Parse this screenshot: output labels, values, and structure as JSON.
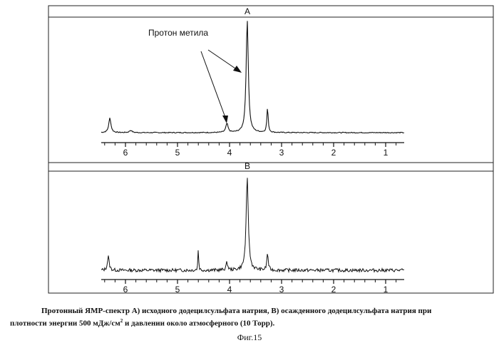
{
  "chart_data": [
    {
      "type": "line",
      "panel_label": "A",
      "annotation": "Протон метила",
      "x_ticks": [
        6,
        5,
        4,
        3,
        2,
        1
      ],
      "xlim": [
        6.45,
        0.6
      ],
      "baseline": 0,
      "peaks": [
        {
          "x": 6.3,
          "height": 0.13,
          "width": 0.025
        },
        {
          "x": 5.9,
          "height": 0.02,
          "width": 0.03
        },
        {
          "x": 4.05,
          "height": 0.08,
          "width": 0.025
        },
        {
          "x": 3.66,
          "height": 1.0,
          "width": 0.025
        },
        {
          "x": 3.27,
          "height": 0.22,
          "width": 0.015
        }
      ],
      "noise": 0.004
    },
    {
      "type": "line",
      "panel_label": "B",
      "x_ticks": [
        6,
        5,
        4,
        3,
        2,
        1
      ],
      "xlim": [
        6.45,
        0.6
      ],
      "baseline": 0,
      "peaks": [
        {
          "x": 6.33,
          "height": 0.15,
          "width": 0.02
        },
        {
          "x": 4.6,
          "height": 0.25,
          "width": 0.008
        },
        {
          "x": 4.05,
          "height": 0.08,
          "width": 0.02
        },
        {
          "x": 3.66,
          "height": 1.0,
          "width": 0.025
        },
        {
          "x": 3.27,
          "height": 0.19,
          "width": 0.015
        }
      ],
      "noise": 0.018
    }
  ],
  "caption": {
    "line1": "Протонный ЯМР-спектр А) исходного додецилсульфата натрия, В) осажденного додецилсульфата натрия при",
    "line2_pre": "плотности энергии 500 мДж/см",
    "line2_sup": "2",
    "line2_post": " и давлении около атмосферного (10 Торр)."
  },
  "figure_label": "Фиг.15"
}
